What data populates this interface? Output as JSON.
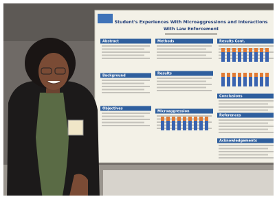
{
  "poster": {
    "title": "Student's Experiences With Microaggressions and Interactions With Law Enforcement",
    "sections": [
      "Abstract",
      "Methods",
      "Results Cont.",
      "Background",
      "Results",
      "Objectives",
      "Microaggression",
      "Conclusions",
      "References",
      "Acknowledgements"
    ]
  }
}
